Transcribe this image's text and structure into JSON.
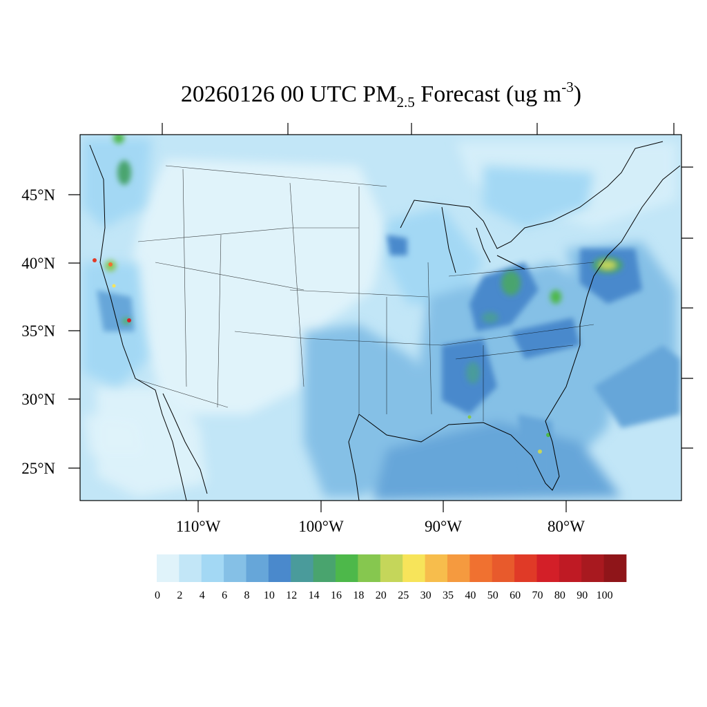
{
  "title": {
    "main": "20260126 00 UTC PM",
    "subscript": "2.5",
    "suffix": " Forecast (ug m",
    "superscript": "-3",
    "close": ")"
  },
  "lat_labels": [
    "45°N",
    "40°N",
    "35°N",
    "30°N",
    "25°N"
  ],
  "lon_labels": [
    "110°W",
    "100°W",
    "90°W",
    "80°W"
  ],
  "colorbar": {
    "colors": [
      "#e0f3fa",
      "#c2e6f7",
      "#a3d8f4",
      "#85c0e6",
      "#66a6d9",
      "#4a89cc",
      "#4a9b9b",
      "#49a46e",
      "#4db84a",
      "#86c74f",
      "#c5d65a",
      "#f7e45a",
      "#f7bd4c",
      "#f59a3f",
      "#f07130",
      "#e85a2c",
      "#e03a27",
      "#d31f28",
      "#bf1a24",
      "#a8191f",
      "#8f1519"
    ],
    "labels": [
      "0",
      "2",
      "4",
      "6",
      "8",
      "10",
      "12",
      "14",
      "16",
      "18",
      "20",
      "25",
      "30",
      "35",
      "40",
      "50",
      "60",
      "70",
      "80",
      "90",
      "100"
    ]
  }
}
